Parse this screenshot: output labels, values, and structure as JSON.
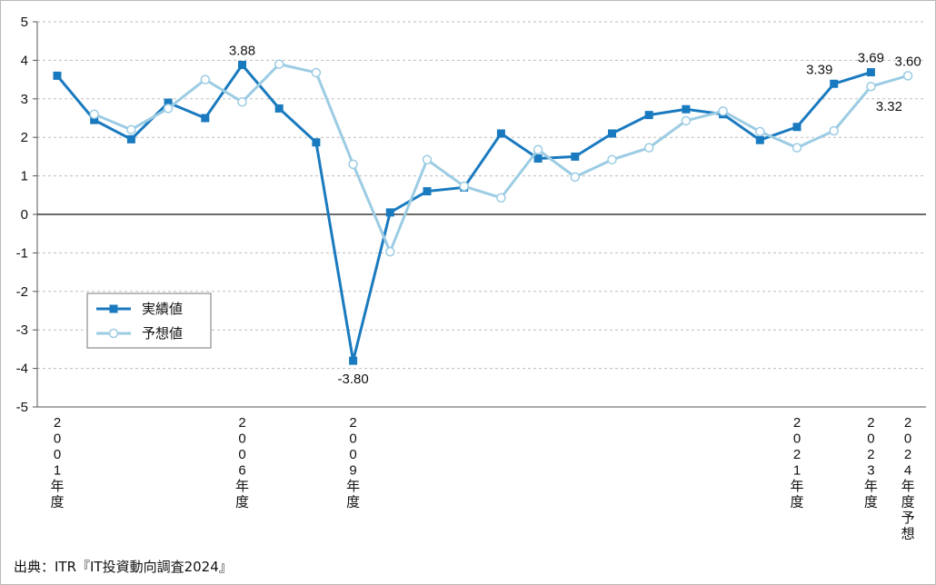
{
  "chart_data": {
    "type": "line",
    "ylim": [
      -5,
      5
    ],
    "y_ticks": [
      5,
      4,
      3,
      2,
      1,
      0,
      -1,
      -2,
      -3,
      -4,
      -5
    ],
    "grid": true,
    "legend_placement": "lower-left",
    "x_years": [
      2001,
      2002,
      2003,
      2004,
      2005,
      2006,
      2007,
      2008,
      2009,
      2010,
      2011,
      2012,
      2013,
      2014,
      2015,
      2016,
      2017,
      2018,
      2019,
      2020,
      2021,
      2022,
      2023,
      2024
    ],
    "x_labels": [
      {
        "year": 2001,
        "text": "2001年度"
      },
      {
        "year": 2006,
        "text": "2006年度"
      },
      {
        "year": 2009,
        "text": "2009年度"
      },
      {
        "year": 2021,
        "text": "2021年度"
      },
      {
        "year": 2023,
        "text": "2023年度"
      },
      {
        "year": 2024,
        "text": "2024年度予想"
      }
    ],
    "series": [
      {
        "name": "実績値",
        "color": "#1a7abf",
        "marker": "square",
        "x": [
          2001,
          2002,
          2003,
          2004,
          2005,
          2006,
          2007,
          2008,
          2009,
          2010,
          2011,
          2012,
          2013,
          2014,
          2015,
          2016,
          2017,
          2018,
          2019,
          2020,
          2021,
          2022,
          2023
        ],
        "values": [
          3.6,
          2.45,
          1.95,
          2.9,
          2.5,
          3.88,
          2.75,
          1.87,
          -3.8,
          0.05,
          0.6,
          0.7,
          2.1,
          1.45,
          1.5,
          2.1,
          2.58,
          2.73,
          2.6,
          1.93,
          2.27,
          3.39,
          3.69
        ]
      },
      {
        "name": "予想値",
        "color": "#9ccce3",
        "marker": "circle",
        "x": [
          2002,
          2003,
          2004,
          2005,
          2006,
          2007,
          2008,
          2009,
          2010,
          2011,
          2012,
          2013,
          2014,
          2015,
          2016,
          2017,
          2018,
          2019,
          2020,
          2021,
          2022,
          2023,
          2024
        ],
        "values": [
          2.6,
          2.2,
          2.75,
          3.5,
          2.92,
          3.9,
          3.68,
          1.3,
          -0.97,
          1.42,
          0.73,
          0.43,
          1.68,
          0.97,
          1.42,
          1.73,
          2.43,
          2.68,
          2.15,
          1.73,
          2.17,
          3.32,
          3.6
        ]
      }
    ],
    "annotations": [
      {
        "series": 0,
        "year": 2006,
        "text": "3.88",
        "pos": "above"
      },
      {
        "series": 0,
        "year": 2009,
        "text": "-3.80",
        "pos": "below"
      },
      {
        "series": 0,
        "year": 2022,
        "text": "3.39",
        "pos": "above-left"
      },
      {
        "series": 0,
        "year": 2023,
        "text": "3.69",
        "pos": "above"
      },
      {
        "series": 1,
        "year": 2023,
        "text": "3.32",
        "pos": "below-right"
      },
      {
        "series": 1,
        "year": 2024,
        "text": "3.60",
        "pos": "above"
      }
    ]
  },
  "source_text": "出典：ITR『IT投資動向調査2024』"
}
